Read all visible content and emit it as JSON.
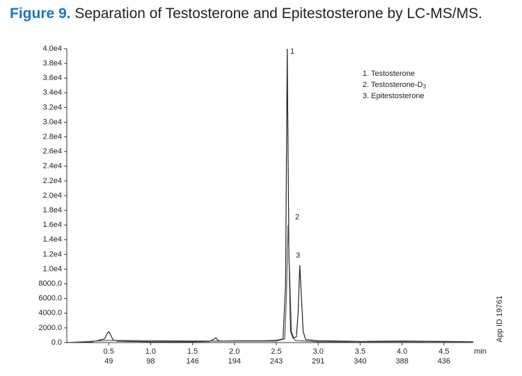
{
  "chart_data": {
    "type": "line",
    "title_label": "Figure 9.",
    "title": "Separation of Testosterone and Epitestosterone by LC-MS/MS.",
    "x_label": "min",
    "side_note": "App ID 19761",
    "xlim": [
      0,
      4.85
    ],
    "ylim": [
      0,
      40000
    ],
    "xticks": [
      {
        "value": 0.5,
        "label": "0.5"
      },
      {
        "value": 1.0,
        "label": "1.0"
      },
      {
        "value": 1.5,
        "label": "1.5"
      },
      {
        "value": 2.0,
        "label": "2.0"
      },
      {
        "value": 2.5,
        "label": "2.5"
      },
      {
        "value": 3.0,
        "label": "3.0"
      },
      {
        "value": 3.5,
        "label": "3.5"
      },
      {
        "value": 4.0,
        "label": "4.0"
      },
      {
        "value": 4.5,
        "label": "4.5"
      }
    ],
    "scans": [
      49,
      98,
      146,
      194,
      243,
      291,
      340,
      388,
      436
    ],
    "yticks": [
      {
        "value": 0,
        "label": "0.0"
      },
      {
        "value": 2000,
        "label": "2000.0"
      },
      {
        "value": 4000,
        "label": "4000.0"
      },
      {
        "value": 6000,
        "label": "6000.0"
      },
      {
        "value": 8000,
        "label": "8000.0"
      },
      {
        "value": 10000,
        "label": "1.0e4"
      },
      {
        "value": 12000,
        "label": "1.2e4"
      },
      {
        "value": 14000,
        "label": "1.4e4"
      },
      {
        "value": 16000,
        "label": "1.6e4"
      },
      {
        "value": 18000,
        "label": "1.8e4"
      },
      {
        "value": 20000,
        "label": "2.0e4"
      },
      {
        "value": 22000,
        "label": "2.2e4"
      },
      {
        "value": 24000,
        "label": "2.4e4"
      },
      {
        "value": 26000,
        "label": "2.6e4"
      },
      {
        "value": 28000,
        "label": "2.8e4"
      },
      {
        "value": 30000,
        "label": "3.0e4"
      },
      {
        "value": 32000,
        "label": "3.2e4"
      },
      {
        "value": 34000,
        "label": "3.4e4"
      },
      {
        "value": 36000,
        "label": "3.6e4"
      },
      {
        "value": 38000,
        "label": "3.8e4"
      },
      {
        "value": 40000,
        "label": "4.0e4"
      }
    ],
    "series": [
      {
        "color": "#222222",
        "x": [
          0,
          0.3,
          0.45,
          0.48,
          0.5,
          0.52,
          0.55,
          0.6,
          1.0,
          1.5,
          1.7,
          1.76,
          1.78,
          1.8,
          1.85,
          2.0,
          2.3,
          2.5,
          2.58,
          2.61,
          2.63,
          2.65,
          2.67,
          2.7,
          2.74,
          2.76,
          2.78,
          2.8,
          2.82,
          2.85,
          3.0,
          3.5,
          4.0,
          4.5,
          4.85
        ],
        "values": [
          0,
          100,
          500,
          1200,
          1500,
          1100,
          400,
          200,
          100,
          100,
          150,
          500,
          650,
          300,
          200,
          250,
          250,
          300,
          500,
          8000,
          40000,
          12000,
          1500,
          600,
          800,
          4000,
          10500,
          6000,
          1500,
          400,
          250,
          150,
          200,
          150,
          100
        ]
      },
      {
        "color": "#555555",
        "x": [
          0,
          0.5,
          1.8,
          2.5,
          2.6,
          2.62,
          2.64,
          2.66,
          2.68,
          2.72,
          3.0,
          4.85
        ],
        "values": [
          0,
          300,
          200,
          200,
          500,
          6000,
          16000,
          9000,
          1500,
          300,
          100,
          50
        ]
      }
    ],
    "peak_labels": [
      "1",
      "2",
      "3"
    ],
    "legend": [
      {
        "text": "1. Testosterone"
      },
      {
        "text": "2. Testosterone-D",
        "subscript": "3"
      },
      {
        "text": "3. Epitestosterone"
      }
    ]
  }
}
